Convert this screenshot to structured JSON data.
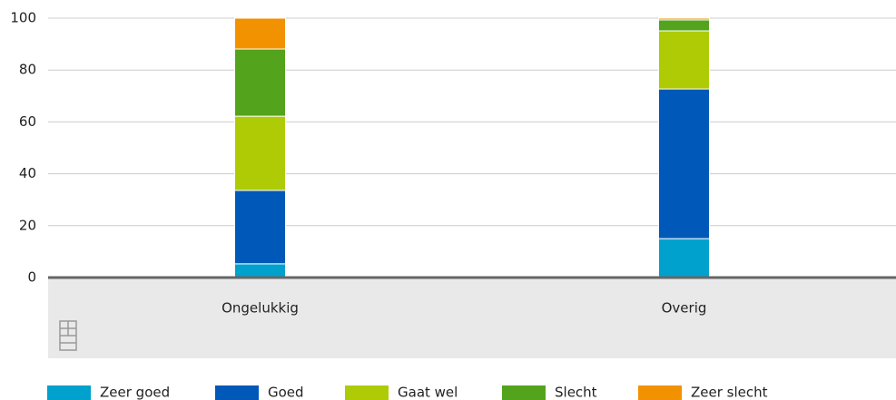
{
  "chart_data": {
    "type": "bar",
    "stacked": true,
    "categories": [
      "Ongelukkig",
      "Overig"
    ],
    "series": [
      {
        "name": "Zeer goed",
        "color": "#00a1cd",
        "values": [
          5.3,
          15.0
        ]
      },
      {
        "name": "Goed",
        "color": "#0058b8",
        "values": [
          28.3,
          57.7
        ]
      },
      {
        "name": "Gaat wel",
        "color": "#afcb05",
        "values": [
          28.6,
          22.4
        ]
      },
      {
        "name": "Slecht",
        "color": "#53a31d",
        "values": [
          25.9,
          4.2
        ]
      },
      {
        "name": "Zeer slecht",
        "color": "#f39200",
        "values": [
          11.9,
          0.7
        ]
      }
    ],
    "ylim": [
      0,
      100
    ],
    "yticks": [
      0,
      20,
      40,
      60,
      80,
      100
    ],
    "grid": true,
    "legend": "bottom"
  }
}
